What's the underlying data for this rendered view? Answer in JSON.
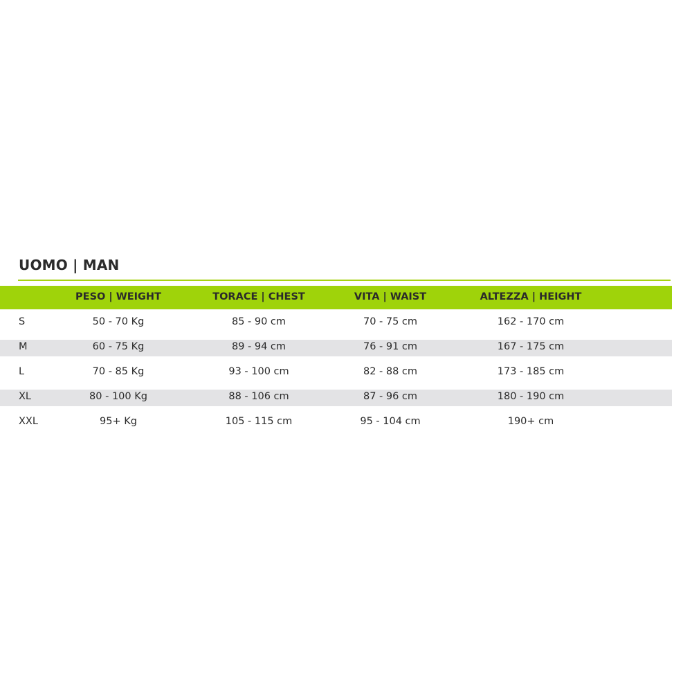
{
  "title": "UOMO | MAN",
  "colors": {
    "accent": "#9fd30a",
    "stripe": "#e3e3e5"
  },
  "headers": [
    "",
    "PESO | WEIGHT",
    "TORACE | CHEST",
    "VITA | WAIST",
    "ALTEZZA | HEIGHT"
  ],
  "rows": [
    {
      "size": "S",
      "weight": "50 - 70 Kg",
      "chest": "85 - 90 cm",
      "waist": "70 - 75 cm",
      "height": "162 - 170 cm"
    },
    {
      "size": "M",
      "weight": "60 - 75 Kg",
      "chest": "89 - 94 cm",
      "waist": "76 - 91 cm",
      "height": "167 - 175 cm"
    },
    {
      "size": "L",
      "weight": "70 - 85 Kg",
      "chest": "93 - 100 cm",
      "waist": "82 - 88 cm",
      "height": "173 - 185 cm"
    },
    {
      "size": "XL",
      "weight": "80 - 100 Kg",
      "chest": "88 - 106 cm",
      "waist": "87 - 96 cm",
      "height": "180 - 190 cm"
    },
    {
      "size": "XXL",
      "weight": "95+ Kg",
      "chest": "105 - 115 cm",
      "waist": "95 - 104 cm",
      "height": "190+ cm"
    }
  ]
}
